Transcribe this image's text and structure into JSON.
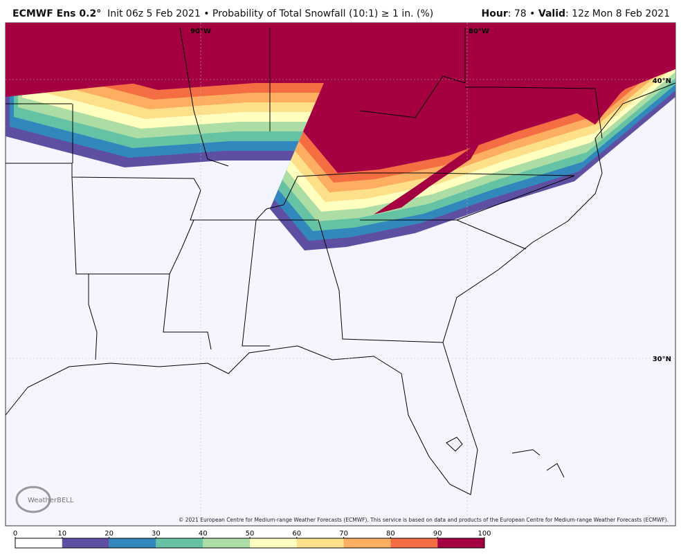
{
  "header": {
    "model": "ECMWF Ens 0.2°",
    "description": "Init 06z 5 Feb 2021 • Probability of Total Snowfall (10:1) ≥ 1 in. (%)",
    "right": [
      {
        "label": "Hour",
        "text": ": 78 • "
      },
      {
        "label": "Valid",
        "text": ": 12z Mon 8 Feb 2021"
      }
    ]
  },
  "map": {
    "labels": [
      "90°W",
      "80°W",
      "40°N",
      "30°N"
    ]
  },
  "copyright": "© 2021 European Centre for Medium-range Weather Forecasts (ECMWF). This service is based on data and products of the European Centre for Medium-range Weather Forecasts (ECMWF).",
  "logo": "WeatherBELL",
  "colorbar": {
    "ticks": [
      0,
      10,
      20,
      30,
      40,
      50,
      60,
      70,
      80,
      90,
      100
    ],
    "colors": [
      "#ffffff",
      "#5e4fa2",
      "#3288bd",
      "#66c2a5",
      "#abdda4",
      "#ffffbf",
      "#fee08b",
      "#fdae61",
      "#f46d43",
      "#a50042"
    ]
  }
}
